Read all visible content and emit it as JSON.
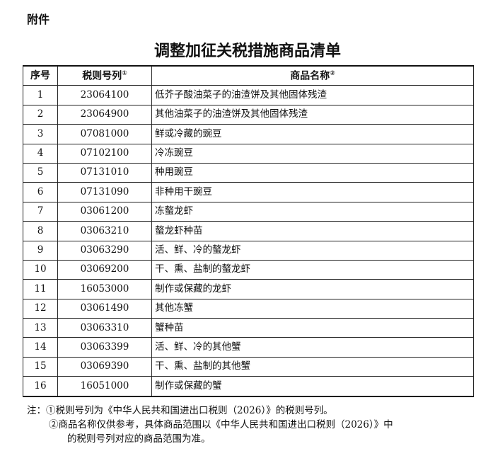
{
  "attachment_label": "附件",
  "title": "调整加征关税措施商品清单",
  "table": {
    "headers": {
      "seq": "序号",
      "code": "税则号列",
      "code_mark": "①",
      "name": "商品名称",
      "name_mark": "②"
    },
    "rows": [
      {
        "seq": "1",
        "code": "23064100",
        "name": "低芥子酸油菜子的油渣饼及其他固体残渣"
      },
      {
        "seq": "2",
        "code": "23064900",
        "name": "其他油菜子的油渣饼及其他固体残渣"
      },
      {
        "seq": "3",
        "code": "07081000",
        "name": "鲜或冷藏的豌豆"
      },
      {
        "seq": "4",
        "code": "07102100",
        "name": "冷冻豌豆"
      },
      {
        "seq": "5",
        "code": "07131010",
        "name": "种用豌豆"
      },
      {
        "seq": "6",
        "code": "07131090",
        "name": "非种用干豌豆"
      },
      {
        "seq": "7",
        "code": "03061200",
        "name": "冻螯龙虾"
      },
      {
        "seq": "8",
        "code": "03063210",
        "name": "螯龙虾种苗"
      },
      {
        "seq": "9",
        "code": "03063290",
        "name": "活、鲜、冷的螯龙虾"
      },
      {
        "seq": "10",
        "code": "03069200",
        "name": "干、熏、盐制的螯龙虾"
      },
      {
        "seq": "11",
        "code": "16053000",
        "name": "制作或保藏的龙虾"
      },
      {
        "seq": "12",
        "code": "03061490",
        "name": "其他冻蟹"
      },
      {
        "seq": "13",
        "code": "03063310",
        "name": "蟹种苗"
      },
      {
        "seq": "14",
        "code": "03063399",
        "name": "活、鲜、冷的其他蟹"
      },
      {
        "seq": "15",
        "code": "03069390",
        "name": "干、熏、盐制的其他蟹"
      },
      {
        "seq": "16",
        "code": "16051000",
        "name": "制作或保藏的蟹"
      }
    ]
  },
  "notes": {
    "line1": "注：①税则号列为《中华人民共和国进出口税则（2026）》的税则号列。",
    "line2": "②商品名称仅供参考，具体商品范围以《中华人民共和国进出口税则（2026）》中",
    "line3": "的税则号列对应的商品范围为准。"
  }
}
